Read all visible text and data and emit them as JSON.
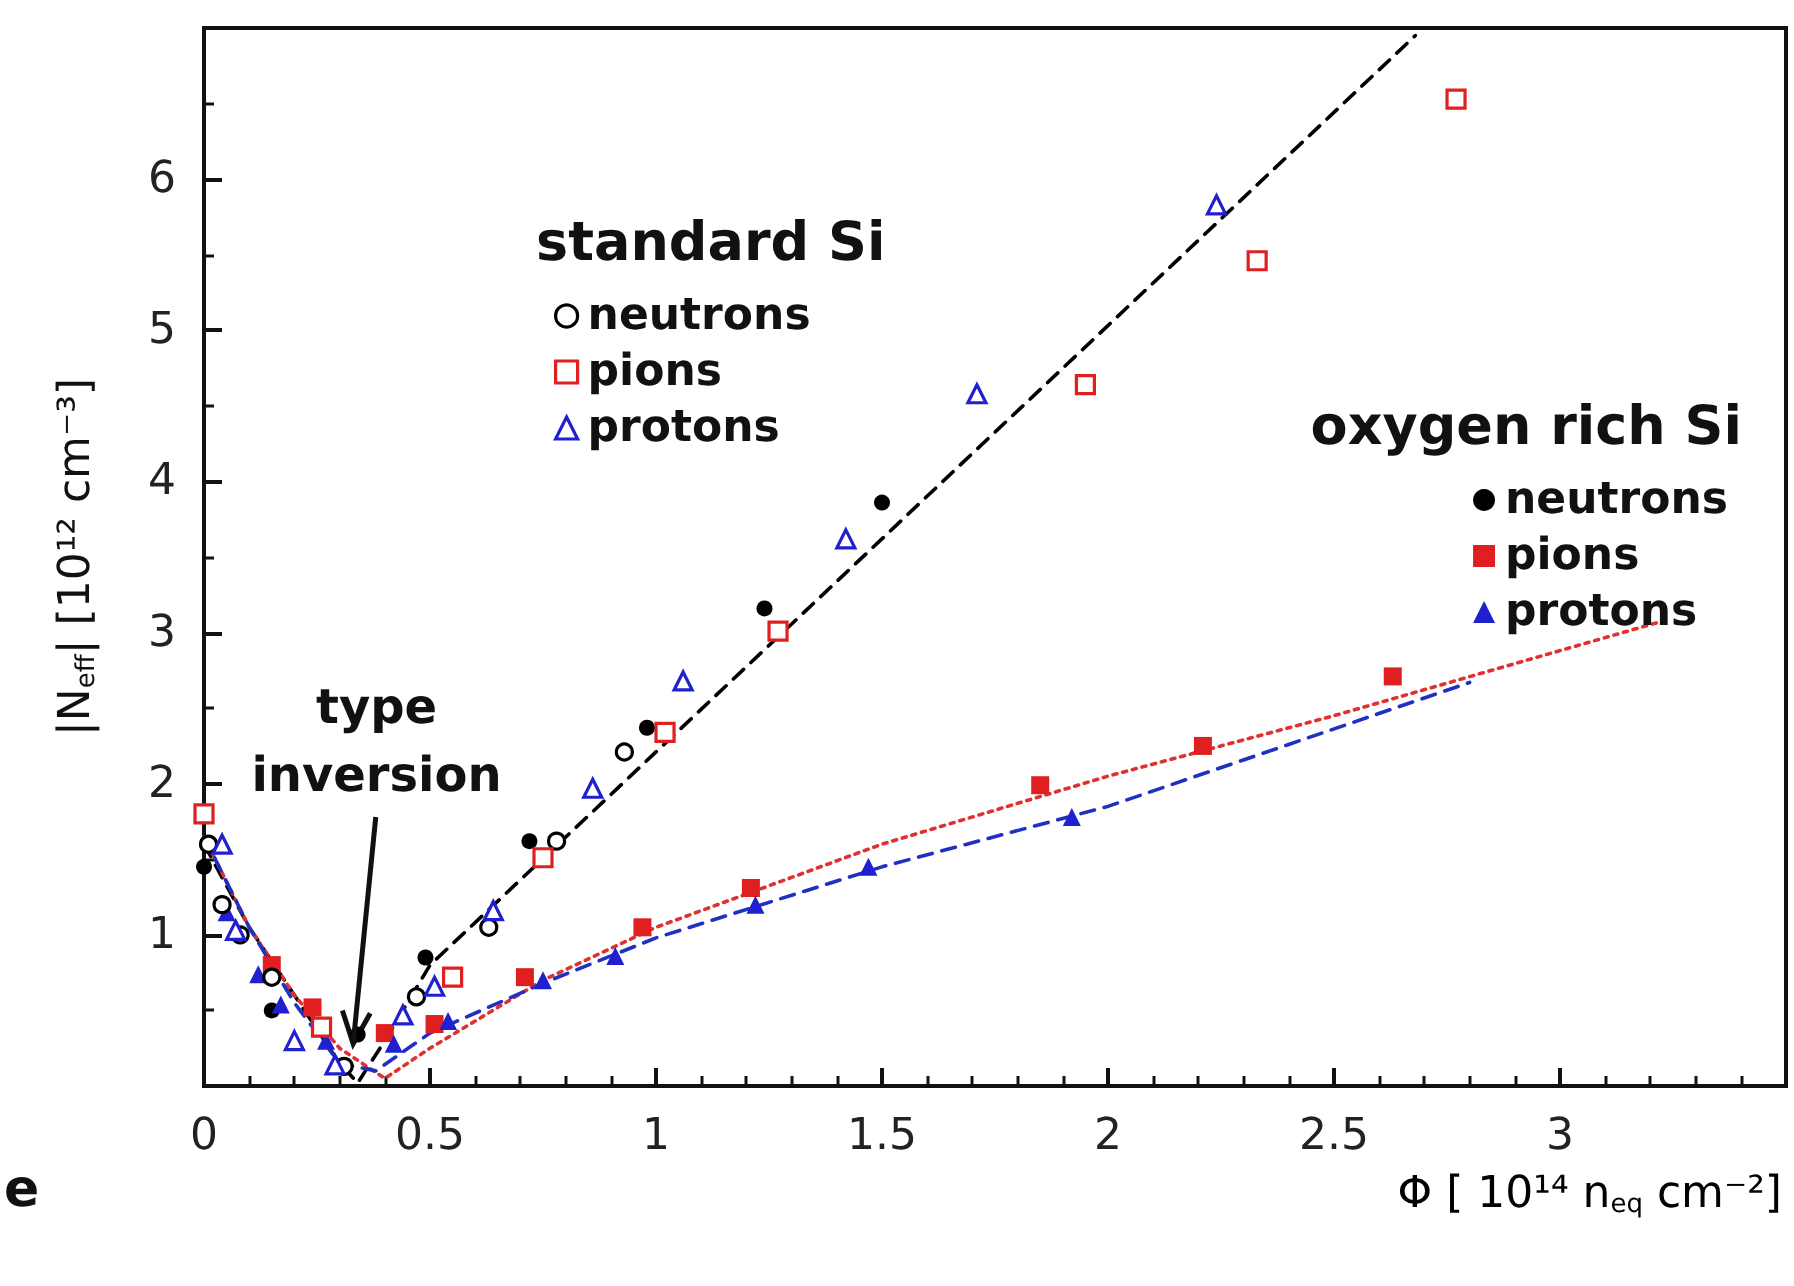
{
  "chart_data": {
    "type": "scatter",
    "xlabel": "Φ [ 10¹⁴ n$_{eq}$ cm⁻²]",
    "ylabel": "|N$_{eff}$| [10¹² cm⁻³]",
    "xlim": [
      0,
      3.5
    ],
    "ylim": [
      0,
      7
    ],
    "xticks": [
      0,
      0.5,
      1,
      1.5,
      2,
      2.5,
      3
    ],
    "yticks": [
      1,
      2,
      3,
      4,
      5,
      6
    ],
    "grid": false,
    "legend": "top right",
    "legend_title": [
      "standard Si",
      "oxygen rich Si"
    ],
    "annotations": [
      {
        "text": "type\ninversion",
        "x": 0.33,
        "y": 0.28
      },
      "e"
    ],
    "series": [
      {
        "type": "line",
        "color": "#000000",
        "line_style": "dashed",
        "marker": "none",
        "x": [
          0,
          0.1,
          0.2,
          0.3,
          0.34,
          0.4,
          0.5,
          1.28,
          2.68
        ],
        "values": [
          1.6,
          1.05,
          0.6,
          0.15,
          0.02,
          0.3,
          0.8,
          3.0,
          6.95
        ]
      },
      {
        "type": "line",
        "color": "#e03030",
        "line_style": "dotted",
        "marker": "none",
        "x": [
          0,
          0.1,
          0.2,
          0.3,
          0.4,
          0.5,
          0.75,
          1,
          1.5,
          2,
          2.5,
          3.22
        ],
        "values": [
          1.65,
          1.05,
          0.6,
          0.25,
          0.05,
          0.25,
          0.7,
          1.05,
          1.6,
          2.05,
          2.45,
          3.07
        ]
      },
      {
        "type": "line",
        "color": "#2030c0",
        "line_style": "dashed",
        "marker": "none",
        "x": [
          0,
          0.1,
          0.2,
          0.3,
          0.38,
          0.5,
          0.75,
          1,
          1.5,
          2,
          2.8
        ],
        "values": [
          1.65,
          1.05,
          0.55,
          0.15,
          0.1,
          0.35,
          0.68,
          0.98,
          1.45,
          1.85,
          2.67
        ]
      },
      {
        "name": "neutrons",
        "marker": "circle",
        "color": "#000000",
        "x": [
          0.01,
          0.04,
          0.08,
          0.15,
          0.31,
          0.47,
          0.63,
          0.78,
          0.93
        ],
        "values": [
          1.6,
          1.2,
          1.0,
          0.72,
          0.13,
          0.59,
          1.05,
          1.62,
          2.21
        ]
      },
      {
        "name": "pions",
        "marker": "square",
        "color": "#e02020",
        "x": [
          0,
          0.26,
          0.55,
          0.75,
          1.02,
          1.27,
          1.95,
          2.33,
          2.77
        ],
        "values": [
          1.8,
          0.39,
          0.72,
          1.51,
          2.34,
          3.01,
          4.64,
          5.46,
          6.53
        ]
      },
      {
        "name": "protons",
        "marker": "triangle",
        "color": "#2020d0",
        "x": [
          0.04,
          0.07,
          0.2,
          0.29,
          0.44,
          0.51,
          0.64,
          0.86,
          1.06,
          1.42,
          1.71,
          2.24
        ],
        "values": [
          1.6,
          1.03,
          0.3,
          0.14,
          0.47,
          0.66,
          1.16,
          1.97,
          2.68,
          3.62,
          4.58,
          5.83
        ]
      },
      {
        "name": "neutrons",
        "marker": "circle",
        "color": "#000000",
        "x": [
          0,
          0.15,
          0.34,
          0.49,
          0.72,
          0.98,
          1.24,
          1.5
        ],
        "values": [
          1.45,
          0.5,
          0.34,
          0.85,
          1.62,
          2.37,
          3.16,
          3.86
        ]
      },
      {
        "name": "pions",
        "marker": "square",
        "color": "#e02020",
        "x": [
          0.15,
          0.24,
          0.4,
          0.51,
          0.71,
          0.97,
          1.21,
          1.85,
          2.21,
          2.63
        ],
        "values": [
          0.8,
          0.52,
          0.35,
          0.41,
          0.72,
          1.05,
          1.31,
          1.99,
          2.25,
          2.71
        ]
      },
      {
        "name": "protons",
        "marker": "triangle",
        "color": "#2020d0",
        "x": [
          0.05,
          0.12,
          0.17,
          0.27,
          0.42,
          0.54,
          0.75,
          0.91,
          1.22,
          1.47,
          1.92
        ],
        "values": [
          1.15,
          0.74,
          0.54,
          0.3,
          0.28,
          0.43,
          0.7,
          0.86,
          1.2,
          1.45,
          1.78
        ]
      }
    ]
  }
}
